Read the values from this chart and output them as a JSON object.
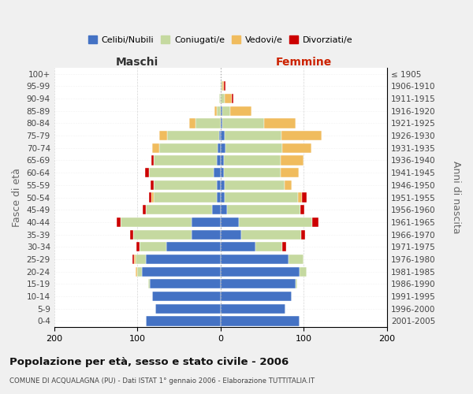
{
  "age_groups": [
    "0-4",
    "5-9",
    "10-14",
    "15-19",
    "20-24",
    "25-29",
    "30-34",
    "35-39",
    "40-44",
    "45-49",
    "50-54",
    "55-59",
    "60-64",
    "65-69",
    "70-74",
    "75-79",
    "80-84",
    "85-89",
    "90-94",
    "95-99",
    "100+"
  ],
  "birth_years": [
    "2001-2005",
    "1996-2000",
    "1991-1995",
    "1986-1990",
    "1981-1985",
    "1976-1980",
    "1971-1975",
    "1966-1970",
    "1961-1965",
    "1956-1960",
    "1951-1955",
    "1946-1950",
    "1941-1945",
    "1936-1940",
    "1931-1935",
    "1926-1930",
    "1921-1925",
    "1916-1920",
    "1911-1915",
    "1906-1910",
    "≤ 1905"
  ],
  "colors": {
    "celibi": "#4472C4",
    "coniugati": "#c5d9a0",
    "vedovi": "#f0bc5e",
    "divorziati": "#cc0000"
  },
  "maschi_celibi": [
    90,
    78,
    82,
    85,
    95,
    90,
    65,
    35,
    35,
    10,
    5,
    5,
    8,
    5,
    4,
    2,
    0,
    0,
    0,
    0,
    0
  ],
  "maschi_coniugati": [
    0,
    0,
    0,
    2,
    5,
    12,
    32,
    70,
    85,
    80,
    75,
    75,
    78,
    75,
    70,
    62,
    30,
    5,
    2,
    0,
    0
  ],
  "maschi_vedovi": [
    0,
    0,
    0,
    0,
    2,
    2,
    0,
    0,
    0,
    0,
    3,
    0,
    0,
    0,
    8,
    10,
    8,
    2,
    0,
    0,
    0
  ],
  "maschi_divorziati": [
    0,
    0,
    0,
    0,
    0,
    2,
    4,
    4,
    5,
    4,
    3,
    4,
    5,
    3,
    0,
    0,
    0,
    0,
    0,
    0,
    0
  ],
  "femmine_celibi": [
    95,
    78,
    85,
    90,
    95,
    82,
    42,
    25,
    22,
    8,
    5,
    5,
    4,
    4,
    6,
    5,
    2,
    2,
    0,
    0,
    0
  ],
  "femmine_coniugati": [
    0,
    0,
    0,
    2,
    8,
    18,
    32,
    72,
    88,
    88,
    88,
    72,
    68,
    68,
    68,
    68,
    50,
    10,
    5,
    2,
    0
  ],
  "femmine_vedovi": [
    0,
    0,
    0,
    0,
    0,
    0,
    0,
    0,
    0,
    0,
    5,
    8,
    22,
    28,
    35,
    48,
    38,
    25,
    8,
    2,
    0
  ],
  "femmine_divorziati": [
    0,
    0,
    0,
    0,
    0,
    0,
    5,
    5,
    8,
    5,
    5,
    0,
    0,
    0,
    0,
    0,
    0,
    0,
    2,
    2,
    0
  ],
  "title": "Popolazione per età, sesso e stato civile - 2006",
  "subtitle": "COMUNE DI ACQUALAGNA (PU) - Dati ISTAT 1° gennaio 2006 - Elaborazione TUTTITALIA.IT",
  "ylabel_left": "Fasce di età",
  "ylabel_right": "Anni di nascita",
  "label_maschi": "Maschi",
  "label_femmine": "Femmine",
  "xlim": 200,
  "legend_labels": [
    "Celibi/Nubili",
    "Coniugati/e",
    "Vedovi/e",
    "Divorziati/e"
  ],
  "fig_bg": "#f0f0f0",
  "plot_bg": "#ffffff"
}
